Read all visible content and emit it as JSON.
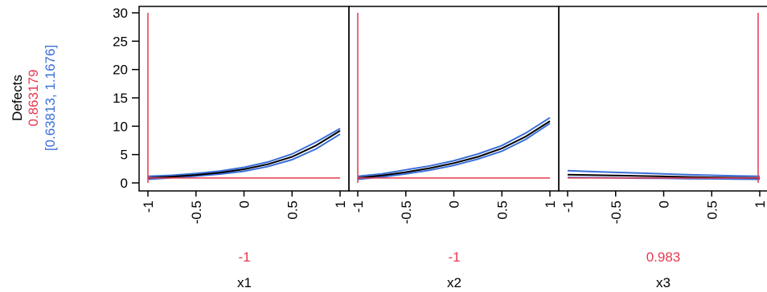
{
  "colors": {
    "current": "#e8384f",
    "interval": "#3a6fd8",
    "prediction": "#000000",
    "frame": "#000000",
    "background": "#ffffff"
  },
  "response": {
    "name": "Defects",
    "value": "0.863179",
    "interval": "[0.63813, 1.1676]"
  },
  "factors": [
    {
      "name": "x1",
      "value": "-1",
      "current": -1
    },
    {
      "name": "x2",
      "value": "-1",
      "current": -1
    },
    {
      "name": "x3",
      "value": "0.983",
      "current": 0.983
    }
  ],
  "chart_data": {
    "type": "line",
    "title": "",
    "ylabel": "Defects",
    "ylim": [
      0,
      30
    ],
    "y_ticks": [
      "0",
      "5",
      "10",
      "15",
      "20",
      "25",
      "30"
    ],
    "xlim": [
      -1,
      1
    ],
    "x_ticks": [
      "-1",
      "-0.5",
      "0",
      "0.5",
      "1"
    ],
    "current_response": 0.863179,
    "panels": [
      {
        "factor": "x1",
        "current_x": -1,
        "x": [
          -1,
          -0.75,
          -0.5,
          -0.25,
          0,
          0.25,
          0.5,
          0.75,
          1
        ],
        "prediction": [
          0.86,
          1.1,
          1.4,
          1.8,
          2.4,
          3.3,
          4.6,
          6.6,
          9.2
        ],
        "lower": [
          0.64,
          0.9,
          1.2,
          1.55,
          2.05,
          2.9,
          4.1,
          6.0,
          8.6
        ],
        "upper": [
          1.17,
          1.35,
          1.65,
          2.1,
          2.75,
          3.7,
          5.1,
          7.2,
          9.6
        ]
      },
      {
        "factor": "x2",
        "current_x": -1,
        "x": [
          -1,
          -0.75,
          -0.5,
          -0.25,
          0,
          0.25,
          0.5,
          0.75,
          1
        ],
        "prediction": [
          0.86,
          1.3,
          1.9,
          2.6,
          3.5,
          4.6,
          6.1,
          8.2,
          10.9
        ],
        "lower": [
          0.64,
          1.05,
          1.6,
          2.25,
          3.1,
          4.2,
          5.6,
          7.7,
          10.5
        ],
        "upper": [
          1.17,
          1.6,
          2.3,
          3.0,
          3.9,
          5.1,
          6.6,
          8.8,
          11.5
        ]
      },
      {
        "factor": "x3",
        "current_x": 0.983,
        "x": [
          -1,
          -0.75,
          -0.5,
          -0.25,
          0,
          0.25,
          0.5,
          0.75,
          1
        ],
        "prediction": [
          1.45,
          1.38,
          1.3,
          1.22,
          1.15,
          1.05,
          0.98,
          0.92,
          0.86
        ],
        "lower": [
          0.95,
          0.92,
          0.88,
          0.84,
          0.8,
          0.75,
          0.72,
          0.68,
          0.64
        ],
        "upper": [
          2.15,
          2.0,
          1.85,
          1.72,
          1.6,
          1.45,
          1.35,
          1.25,
          1.17
        ]
      }
    ]
  }
}
